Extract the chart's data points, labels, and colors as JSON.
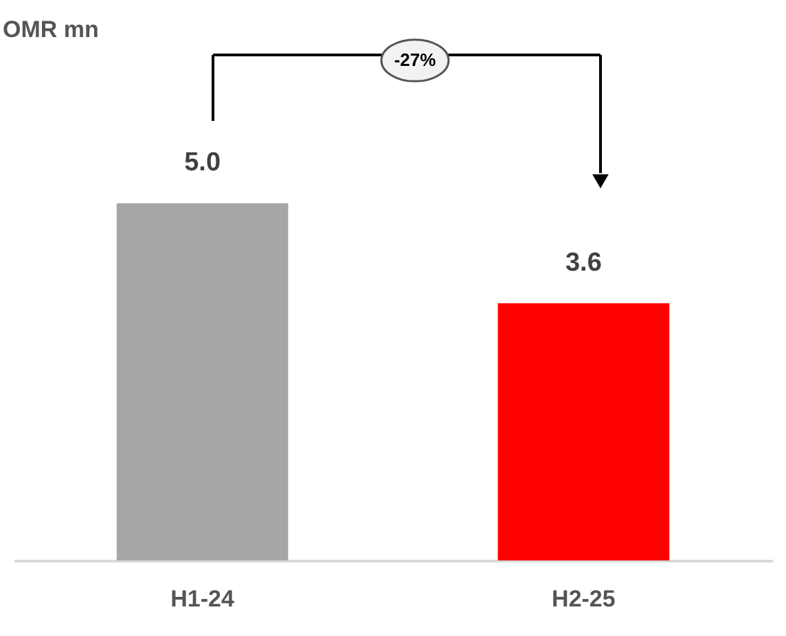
{
  "chart_data": {
    "type": "bar",
    "title": "OMR mn",
    "categories": [
      "H1-24",
      "H2-25"
    ],
    "values": [
      5.0,
      3.6
    ],
    "colors": [
      "#a6a6a6",
      "#ff0000"
    ],
    "value_labels": [
      "5.0",
      "3.6"
    ],
    "annotations": [
      "-27%"
    ],
    "grid": false,
    "legend": false
  }
}
